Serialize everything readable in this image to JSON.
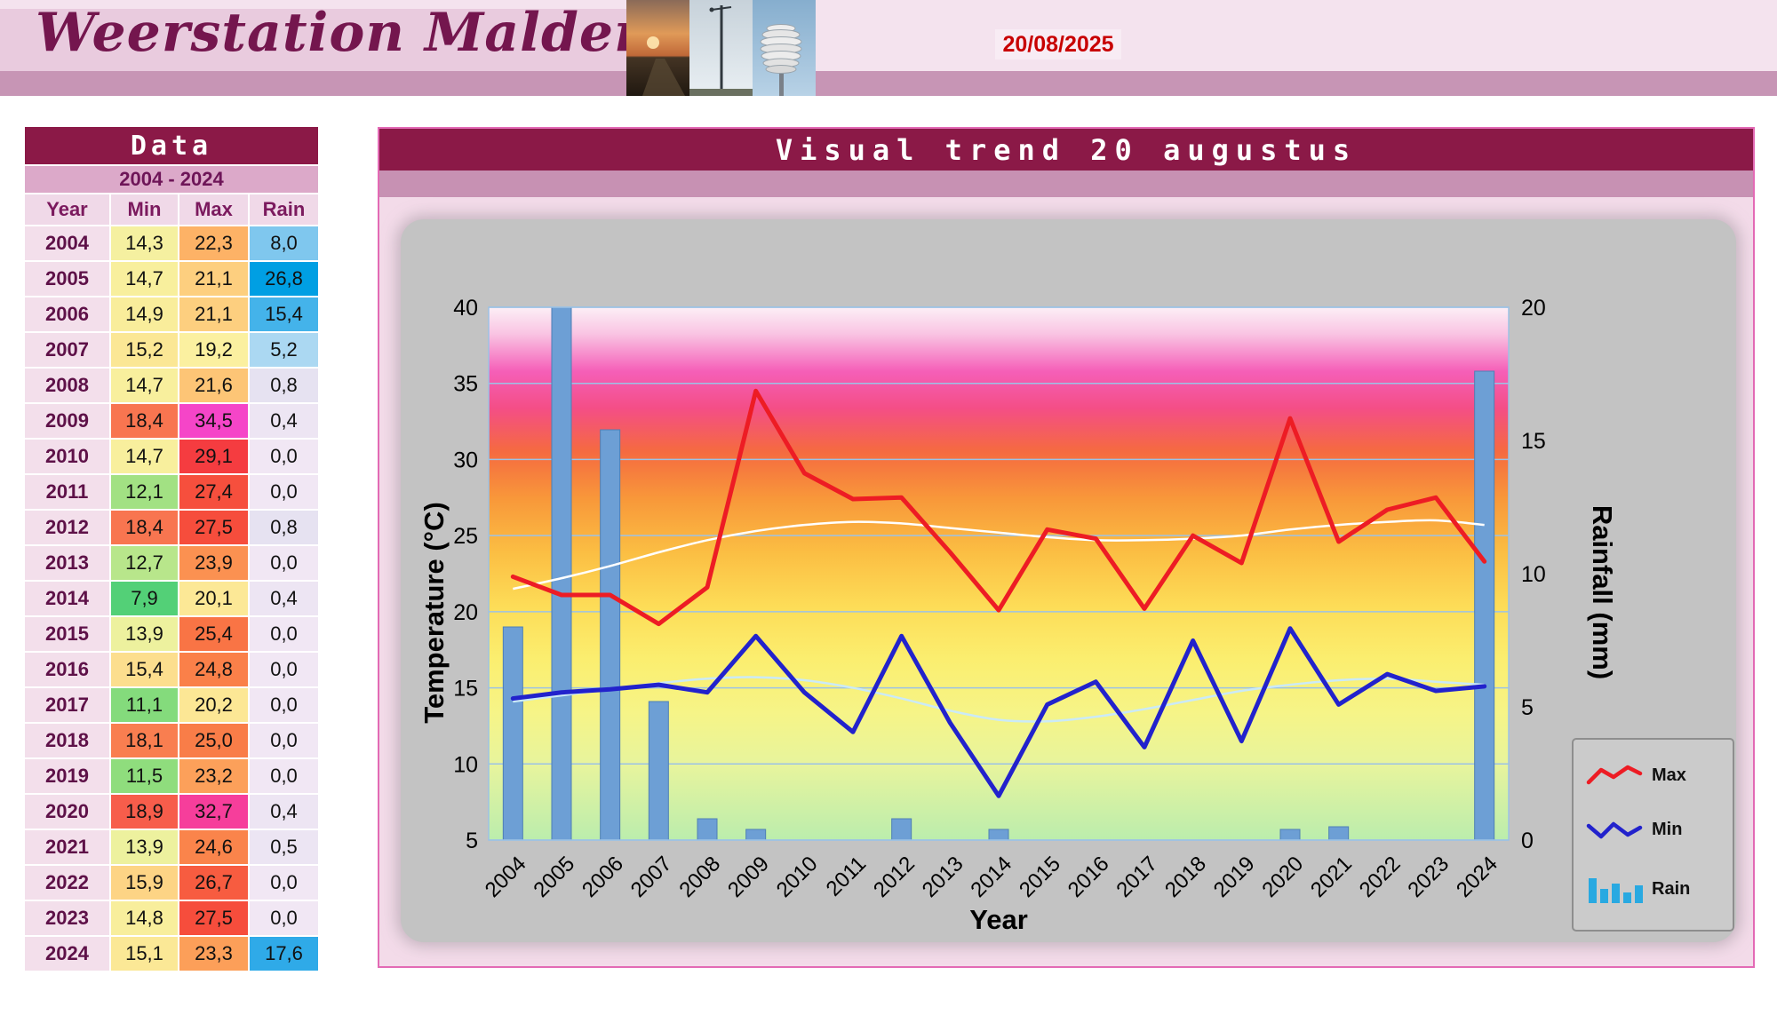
{
  "header": {
    "title": "Weerstation Malderen",
    "date": "20/08/2025",
    "photos": [
      "sunset-field-photo",
      "weather-mast-photo",
      "radiation-shield-photo"
    ]
  },
  "data_panel": {
    "title": "Data",
    "subtitle": "2004 - 2024",
    "columns": [
      "Year",
      "Min",
      "Max",
      "Rain"
    ],
    "rows": [
      {
        "year": "2004",
        "min": "14,3",
        "max": "22,3",
        "rain": "8,0",
        "min_color": "#F5F0A0",
        "max_color": "#FDB266",
        "rain_color": "#7FC7EE"
      },
      {
        "year": "2005",
        "min": "14,7",
        "max": "21,1",
        "rain": "26,8",
        "min_color": "#F8EF9D",
        "max_color": "#FDCF7F",
        "rain_color": "#009FE3"
      },
      {
        "year": "2006",
        "min": "14,9",
        "max": "21,1",
        "rain": "15,4",
        "min_color": "#F9ED9B",
        "max_color": "#FDCF7F",
        "rain_color": "#44B3EA"
      },
      {
        "year": "2007",
        "min": "15,2",
        "max": "19,2",
        "rain": "5,2",
        "min_color": "#FBE795",
        "max_color": "#FBF0A0",
        "rain_color": "#ABD8F2"
      },
      {
        "year": "2008",
        "min": "14,7",
        "max": "21,6",
        "rain": "0,8",
        "min_color": "#F8EF9D",
        "max_color": "#FDC576",
        "rain_color": "#E6E2F1"
      },
      {
        "year": "2009",
        "min": "18,4",
        "max": "34,5",
        "rain": "0,4",
        "min_color": "#F87550",
        "max_color": "#F545C8",
        "rain_color": "#EDE5F3"
      },
      {
        "year": "2010",
        "min": "14,7",
        "max": "29,1",
        "rain": "0,0",
        "min_color": "#F8EF9D",
        "max_color": "#F53C40",
        "rain_color": "#F1E7F4"
      },
      {
        "year": "2011",
        "min": "12,1",
        "max": "27,4",
        "rain": "0,0",
        "min_color": "#A2E183",
        "max_color": "#F64F3D",
        "rain_color": "#F1E7F4"
      },
      {
        "year": "2012",
        "min": "18,4",
        "max": "27,5",
        "rain": "0,8",
        "min_color": "#F87550",
        "max_color": "#F64D3C",
        "rain_color": "#E6E2F1"
      },
      {
        "year": "2013",
        "min": "12,7",
        "max": "23,9",
        "rain": "0,0",
        "min_color": "#B8E68B",
        "max_color": "#FB9151",
        "rain_color": "#F1E7F4"
      },
      {
        "year": "2014",
        "min": "7,9",
        "max": "20,1",
        "rain": "0,4",
        "min_color": "#53D077",
        "max_color": "#FCE896",
        "rain_color": "#EDE5F3"
      },
      {
        "year": "2015",
        "min": "13,9",
        "max": "25,4",
        "rain": "0,0",
        "min_color": "#EDF19E",
        "max_color": "#F97445",
        "rain_color": "#F1E7F4"
      },
      {
        "year": "2016",
        "min": "15,4",
        "max": "24,8",
        "rain": "0,0",
        "min_color": "#FCDE8E",
        "max_color": "#FA8049",
        "rain_color": "#F1E7F4"
      },
      {
        "year": "2017",
        "min": "11,1",
        "max": "20,2",
        "rain": "0,0",
        "min_color": "#84DB7C",
        "max_color": "#FCE795",
        "rain_color": "#F1E7F4"
      },
      {
        "year": "2018",
        "min": "18,1",
        "max": "25,0",
        "rain": "0,0",
        "min_color": "#F97E50",
        "max_color": "#F97D48",
        "rain_color": "#F1E7F4"
      },
      {
        "year": "2019",
        "min": "11,5",
        "max": "23,2",
        "rain": "0,0",
        "min_color": "#8FDD7D",
        "max_color": "#FCA05A",
        "rain_color": "#F1E7F4"
      },
      {
        "year": "2020",
        "min": "18,9",
        "max": "32,7",
        "rain": "0,4",
        "min_color": "#F75D4B",
        "max_color": "#F63E9B",
        "rain_color": "#EDE5F3"
      },
      {
        "year": "2021",
        "min": "13,9",
        "max": "24,6",
        "rain": "0,5",
        "min_color": "#EDF19E",
        "max_color": "#FA844B",
        "rain_color": "#ECE5F3"
      },
      {
        "year": "2022",
        "min": "15,9",
        "max": "26,7",
        "rain": "0,0",
        "min_color": "#FDD485",
        "max_color": "#F75C40",
        "rain_color": "#F1E7F4"
      },
      {
        "year": "2023",
        "min": "14,8",
        "max": "27,5",
        "rain": "0,0",
        "min_color": "#F8EE9C",
        "max_color": "#F64D3C",
        "rain_color": "#F1E7F4"
      },
      {
        "year": "2024",
        "min": "15,1",
        "max": "23,3",
        "rain": "17,6",
        "min_color": "#FBE896",
        "max_color": "#FC9F59",
        "rain_color": "#2FAAE8"
      }
    ]
  },
  "chart_data": {
    "type": "combo-bar-line",
    "title": "Visual trend 20 augustus",
    "xlabel": "Year",
    "ylabel_left": "Temperature (°C)",
    "ylabel_right": "Rainfall (mm)",
    "grid": true,
    "legend_position": "bottom-right",
    "y_left": {
      "min": 5,
      "max": 40,
      "step": 5
    },
    "y_right": {
      "min": 0,
      "max": 20,
      "step": 5
    },
    "categories": [
      "2004",
      "2005",
      "2006",
      "2007",
      "2008",
      "2009",
      "2010",
      "2011",
      "2012",
      "2013",
      "2014",
      "2015",
      "2016",
      "2017",
      "2018",
      "2019",
      "2020",
      "2021",
      "2022",
      "2023",
      "2024"
    ],
    "series": [
      {
        "name": "Max",
        "type": "line",
        "axis": "left",
        "color": "#ED1C24",
        "values": [
          22.3,
          21.1,
          21.1,
          19.2,
          21.6,
          34.5,
          29.1,
          27.4,
          27.5,
          23.9,
          20.1,
          25.4,
          24.8,
          20.2,
          25.0,
          23.2,
          32.7,
          24.6,
          26.7,
          27.5,
          23.3
        ]
      },
      {
        "name": "Min",
        "type": "line",
        "axis": "left",
        "color": "#2222CC",
        "values": [
          14.3,
          14.7,
          14.9,
          15.2,
          14.7,
          18.4,
          14.7,
          12.1,
          18.4,
          12.7,
          7.9,
          13.9,
          15.4,
          11.1,
          18.1,
          11.5,
          18.9,
          13.9,
          15.9,
          14.8,
          15.1
        ]
      },
      {
        "name": "Rain",
        "type": "bar",
        "axis": "right",
        "color": "#6D9FD5",
        "values": [
          8.0,
          26.8,
          15.4,
          5.2,
          0.8,
          0.4,
          0.0,
          0.0,
          0.8,
          0.0,
          0.4,
          0.0,
          0.0,
          0.0,
          0.0,
          0.0,
          0.4,
          0.5,
          0.0,
          0.0,
          17.6
        ]
      },
      {
        "name": "Max trend",
        "type": "trend",
        "axis": "left",
        "color": "#FFFFFF",
        "values": [
          21.5,
          22.2,
          23.0,
          23.9,
          24.7,
          25.3,
          25.7,
          25.9,
          25.8,
          25.5,
          25.2,
          24.9,
          24.7,
          24.7,
          24.8,
          25.0,
          25.4,
          25.7,
          25.9,
          26.0,
          25.7
        ]
      },
      {
        "name": "Min trend",
        "type": "trend",
        "axis": "left",
        "color": "#CBEAF7",
        "values": [
          14.1,
          14.5,
          14.9,
          15.3,
          15.6,
          15.7,
          15.5,
          15.0,
          14.3,
          13.5,
          12.9,
          12.8,
          13.1,
          13.6,
          14.2,
          14.8,
          15.2,
          15.5,
          15.6,
          15.4,
          15.2
        ]
      }
    ]
  }
}
